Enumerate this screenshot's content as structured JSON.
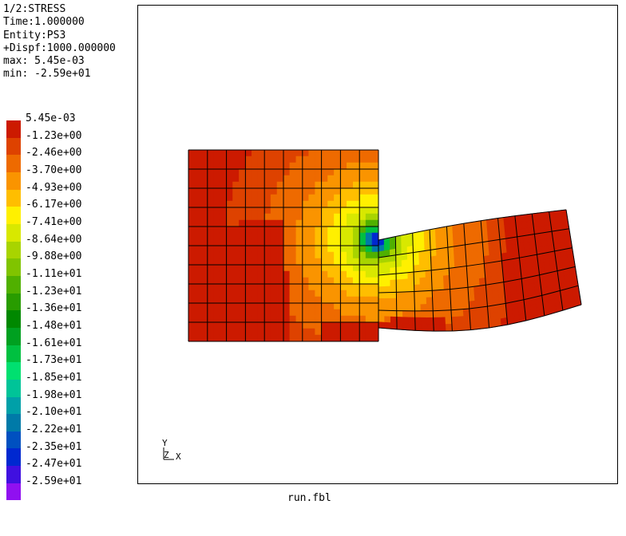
{
  "header": {
    "lines": [
      "1/2:STRESS",
      "Time:1.000000",
      "Entity:PS3",
      "+Dispf:1000.000000",
      "max: 5.45e-03",
      "min: -2.59e+01"
    ]
  },
  "legend": {
    "labels": [
      "5.45e-03",
      "-1.23e+00",
      "-2.46e+00",
      "-3.70e+00",
      "-4.93e+00",
      "-6.17e+00",
      "-7.41e+00",
      "-8.64e+00",
      "-9.88e+00",
      "-1.11e+01",
      "-1.23e+01",
      "-1.36e+01",
      "-1.48e+01",
      "-1.61e+01",
      "-1.73e+01",
      "-1.85e+01",
      "-1.98e+01",
      "-2.10e+01",
      "-2.22e+01",
      "-2.35e+01",
      "-2.47e+01",
      "-2.59e+01"
    ],
    "colors": [
      "#cc1a00",
      "#de4200",
      "#ee6a00",
      "#fa9400",
      "#ffbe00",
      "#fff000",
      "#d8e800",
      "#a8d400",
      "#80c400",
      "#50b000",
      "#289c00",
      "#008800",
      "#00a020",
      "#00c040",
      "#00e070",
      "#00c498",
      "#00a0a8",
      "#007aa8",
      "#0050c0",
      "#0028d0",
      "#4010e0",
      "#9010f0"
    ]
  },
  "triad": {
    "y_label": "Y",
    "z_label": "Z",
    "x_label": "X"
  },
  "footer": {
    "filename": "run.fbl"
  },
  "colors": {
    "mesh_line": "#000000",
    "background": "#ffffff"
  }
}
